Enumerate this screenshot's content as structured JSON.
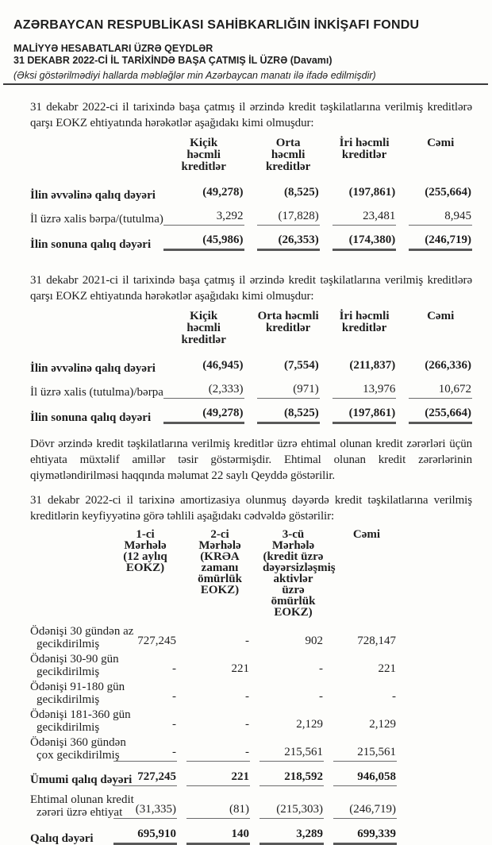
{
  "header": {
    "title": "AZƏRBAYCAN RESPUBLİKASI SAHİBKARLIĞIN İNKİŞAFI FONDU",
    "notes_heading": "MALİYYƏ HESABATLARI ÜZRƏ QEYDLƏR",
    "period_heading": "31 DEKABR 2022-Cİ İL TARİXİNDƏ BAŞA ÇATMIŞ İL ÜZRƏ (Davamı)",
    "currency_note": "(Əksi göstərilmədiyi hallarda məbləğlər min Azərbaycan manatı ilə ifadə edilmişdir)"
  },
  "paragraphs": {
    "p1": "31 dekabr 2022-ci il tarixində başa çatmış il ərzində kredit təşkilatlarına verilmiş kreditlərə qarşı EOKZ ehtiyatında hərəkətlər aşağıdakı kimi olmuşdur:",
    "p2": "31 dekabr 2021-ci il tarixində başa çatmış il ərzində kredit təşkilatlarına verilmiş kreditlərə qarşı EOKZ ehtiyatında hərəkətlər aşağıdakı kimi olmuşdur:",
    "p3": "Dövr ərzində kredit təşkilatlarına verilmiş kreditlər üzrə ehtimal olunan kredit zərərləri üçün ehtiyata müxtəlif amillər təsir göstərmişdir. Ehtimal olunan kredit zərərlərinin qiymətləndirilməsi haqqında məlumat 22 saylı Qeyddə göstərilir.",
    "p4": "31 dekabr 2022-ci il tarixinə amortizasiya olunmuş dəyərdə kredit təşkilatlarına verilmiş kreditlərin keyfiyyətinə görə təhlili aşağıdakı cədvəldə göstərilir:"
  },
  "table_2022": {
    "headers": [
      "Kiçik\nhəcmli\nkreditlər",
      "Orta\nhəcmli\nkreditlər",
      "İri həcmli\nkreditlər",
      "Cəmi"
    ],
    "rows": [
      {
        "label": "İlin əvvəlinə qalıq dəyəri",
        "values": [
          "(49,278)",
          "(8,525)",
          "(197,861)",
          "(255,664)"
        ]
      },
      {
        "label": "İl üzrə xalis bərpa/(tutulma)",
        "values": [
          "3,292",
          "(17,828)",
          "23,481",
          "8,945"
        ]
      },
      {
        "label": "İlin sonuna qalıq dəyəri",
        "values": [
          "(45,986)",
          "(26,353)",
          "(174,380)",
          "(246,719)"
        ]
      }
    ]
  },
  "table_2021": {
    "headers": [
      "Kiçik\nhəcmli\nkreditlər",
      "Orta həcmli\nkreditlər",
      "İri həcmli\nkreditlər",
      "Cəmi"
    ],
    "rows": [
      {
        "label": "İlin əvvəlinə qalıq dəyəri",
        "values": [
          "(46,945)",
          "(7,554)",
          "(211,837)",
          "(266,336)"
        ]
      },
      {
        "label": "İl üzrə xalis (tutulma)/bərpa",
        "values": [
          "(2,333)",
          "(971)",
          "13,976",
          "10,672"
        ]
      },
      {
        "label": "İlin sonuna qalıq dəyəri",
        "values": [
          "(49,278)",
          "(8,525)",
          "(197,861)",
          "(255,664)"
        ]
      }
    ]
  },
  "table_stages": {
    "headers": [
      "1-ci Mərhələ\n(12 aylıq\nEOKZ)",
      "2-ci Mərhələ\n(KRƏA\nzamanı\nömürlük\nEOKZ)",
      "3-cü Mərhələ\n(kredit üzrə\ndəyərsizləşmiş\naktivlər üzrə\nömürlük\nEOKZ)",
      "Cəmi"
    ],
    "rows": [
      {
        "label": "Ödənişi 30 gündən az\ngecikdirilmiş",
        "values": [
          "727,245",
          "-",
          "902",
          "728,147"
        ]
      },
      {
        "label": "Ödənişi 30-90 gün\ngecikdirilmiş",
        "values": [
          "-",
          "221",
          "-",
          "221"
        ]
      },
      {
        "label": "Ödənişi 91-180 gün\ngecikdirilmiş",
        "values": [
          "-",
          "-",
          "-",
          "-"
        ]
      },
      {
        "label": "Ödənişi 181-360 gün\ngecikdirilmiş",
        "values": [
          "-",
          "-",
          "2,129",
          "2,129"
        ]
      },
      {
        "label": "Ödənişi 360 gündən\nçox gecikdirilmiş",
        "values": [
          "-",
          "-",
          "215,561",
          "215,561"
        ]
      },
      {
        "label": "Ümumi qalıq dəyəri",
        "values": [
          "727,245",
          "221",
          "218,592",
          "946,058"
        ]
      },
      {
        "label": "Ehtimal olunan kredit\nzərəri üzrə ehtiyat",
        "values": [
          "(31,335)",
          "(81)",
          "(215,303)",
          "(246,719)"
        ]
      },
      {
        "label": "Qalıq dəyəri",
        "values": [
          "695,910",
          "140",
          "3,289",
          "699,339"
        ]
      }
    ]
  }
}
